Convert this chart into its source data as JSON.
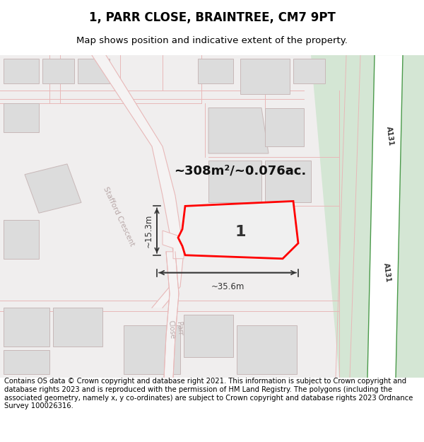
{
  "title": "1, PARR CLOSE, BRAINTREE, CM7 9PT",
  "subtitle": "Map shows position and indicative extent of the property.",
  "copyright": "Contains OS data © Crown copyright and database right 2021. This information is subject to Crown copyright and database rights 2023 and is reproduced with the permission of HM Land Registry. The polygons (including the associated geometry, namely x, y co-ordinates) are subject to Crown copyright and database rights 2023 Ordnance Survey 100026316.",
  "area_text": "~308m²/~0.076ac.",
  "width_text": "~35.6m",
  "height_text": "~15.3m",
  "plot_label": "1",
  "road_label_stafford": "Stafford Crescent",
  "road_label_parr": "Parr\nClose",
  "road_label_a131": "A131",
  "bg_color": "#ffffff",
  "map_bg": "#f0eeee",
  "title_fontsize": 12,
  "subtitle_fontsize": 9.5,
  "copyright_fontsize": 7.2,
  "road_color": "#e8b8b8",
  "property_color": "#ff0000",
  "property_fill": "#f0f0f0",
  "green_wide_color": "#d4e6d4",
  "green_narrow_color": "#5cb85c",
  "dim_color": "#333333",
  "building_fill": "#dcdcdc",
  "building_edge": "#c8b8b8"
}
